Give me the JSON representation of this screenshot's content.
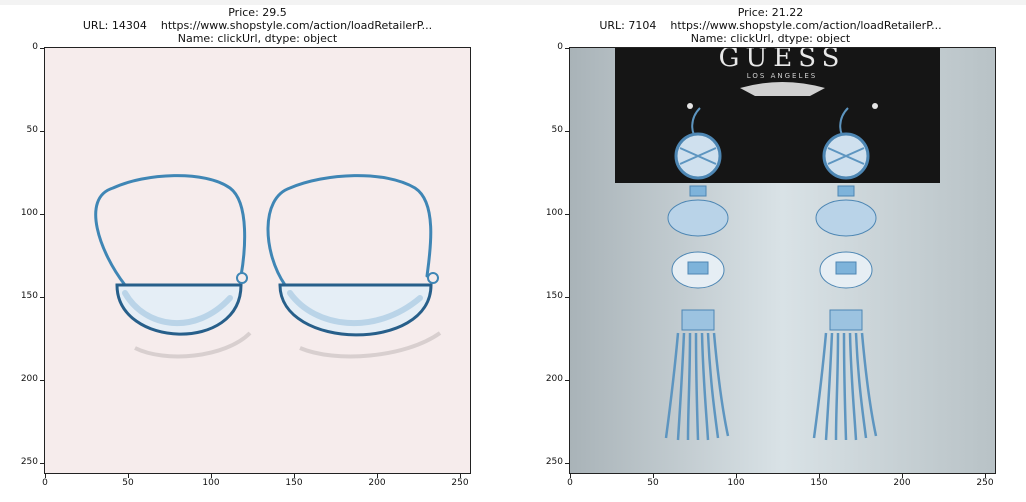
{
  "panels": [
    {
      "title": {
        "price": "Price: 29.5",
        "url": "URL: 14304    https://www.shopstyle.com/action/loadRetailerP...",
        "name": "Name: clickUrl, dtype: object"
      },
      "image_icon": "earrings-hoop-photo",
      "yticks": [
        "0",
        "50",
        "100",
        "150",
        "200",
        "250"
      ],
      "xticks": [
        "0",
        "50",
        "100",
        "150",
        "200",
        "250"
      ]
    },
    {
      "title": {
        "price": "Price: 21.22",
        "url": "URL: 7104    https://www.shopstyle.com/action/loadRetailerP...",
        "name": "Name: clickUrl, dtype: object"
      },
      "image_icon": "earrings-tassel-photo",
      "brand_text": "GUESS",
      "brand_sub": "LOS ANGELES",
      "yticks": [
        "0",
        "50",
        "100",
        "150",
        "200",
        "250"
      ],
      "xticks": [
        "0",
        "50",
        "100",
        "150",
        "200",
        "250"
      ]
    }
  ],
  "colors": {
    "left_bg": "#f6ecec",
    "right_bg": "#c9d3d8",
    "card": "#151515",
    "metal": "#6ea6cf"
  }
}
